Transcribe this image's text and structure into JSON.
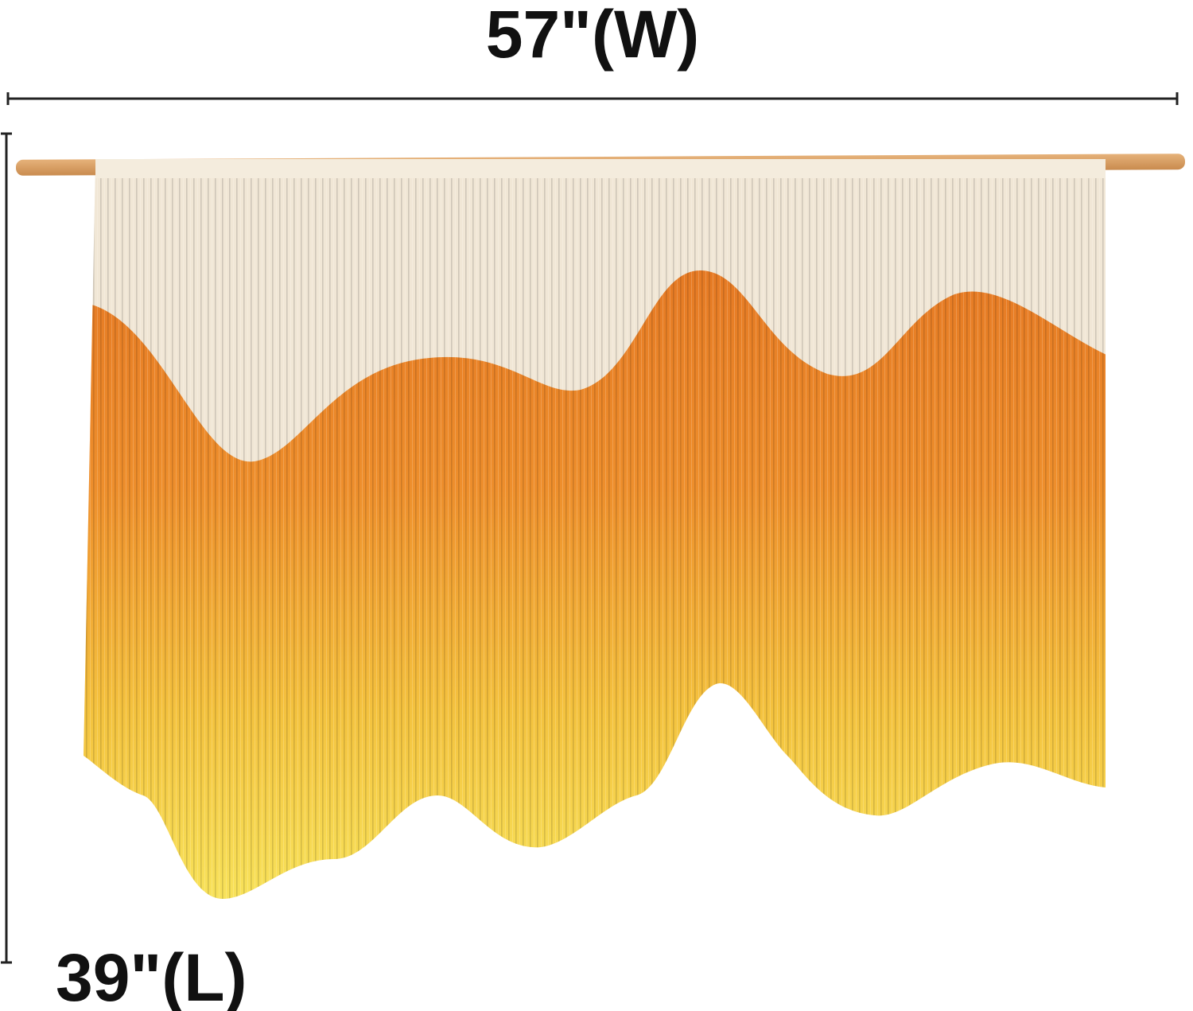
{
  "width_label": "57\"(W)",
  "length_label": "39\"(L)"
}
